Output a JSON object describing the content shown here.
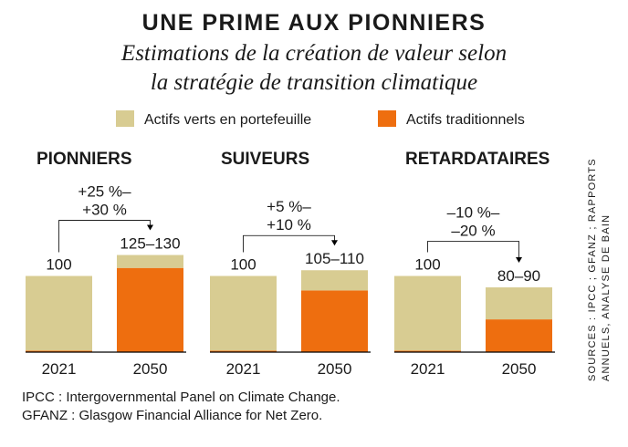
{
  "title": "UNE PRIME AUX PIONNIERS",
  "subtitle_line1": "Estimations de la création de valeur selon",
  "subtitle_line2": "la stratégie de transition climatique",
  "legend": {
    "green": "Actifs verts en portefeuille",
    "traditional": "Actifs traditionnels"
  },
  "colors": {
    "green": "#d8cc92",
    "traditional": "#ee6e0f",
    "text": "#1a1a1a",
    "axis": "#000000"
  },
  "chart_data": {
    "type": "bar",
    "stacked": true,
    "ylim": [
      0,
      130
    ],
    "series_names": [
      "Actifs verts en portefeuille",
      "Actifs traditionnels"
    ],
    "groups": [
      {
        "name": "PIONNIERS",
        "change_line1": "+25 %–",
        "change_line2": "+30 %",
        "bars": [
          {
            "year": "2021",
            "label": "100",
            "total": 100,
            "green": 98,
            "traditional": 2
          },
          {
            "year": "2050",
            "label": "125–130",
            "total": 127.5,
            "green": 17,
            "traditional": 110.5
          }
        ]
      },
      {
        "name": "SUIVEURS",
        "change_line1": "+5 %–",
        "change_line2": "+10 %",
        "bars": [
          {
            "year": "2021",
            "label": "100",
            "total": 100,
            "green": 98,
            "traditional": 2
          },
          {
            "year": "2050",
            "label": "105–110",
            "total": 107.5,
            "green": 26.5,
            "traditional": 81
          }
        ]
      },
      {
        "name": "RETARDATAIRES",
        "change_line1": "–10 %–",
        "change_line2": "–20 %",
        "bars": [
          {
            "year": "2021",
            "label": "100",
            "total": 100,
            "green": 98,
            "traditional": 2
          },
          {
            "year": "2050",
            "label": "80–90",
            "total": 85,
            "green": 42,
            "traditional": 43
          }
        ]
      }
    ]
  },
  "notes": {
    "line1": "IPCC : Intergovernmental Panel on Climate Change.",
    "line2": "GFANZ : Glasgow Financial Alliance for Net Zero."
  },
  "source": {
    "line1": "SOURCES : IPCC ; GFANZ ; RAPPORTS",
    "line2": "ANNUELS, ANALYSE DE BAIN"
  }
}
